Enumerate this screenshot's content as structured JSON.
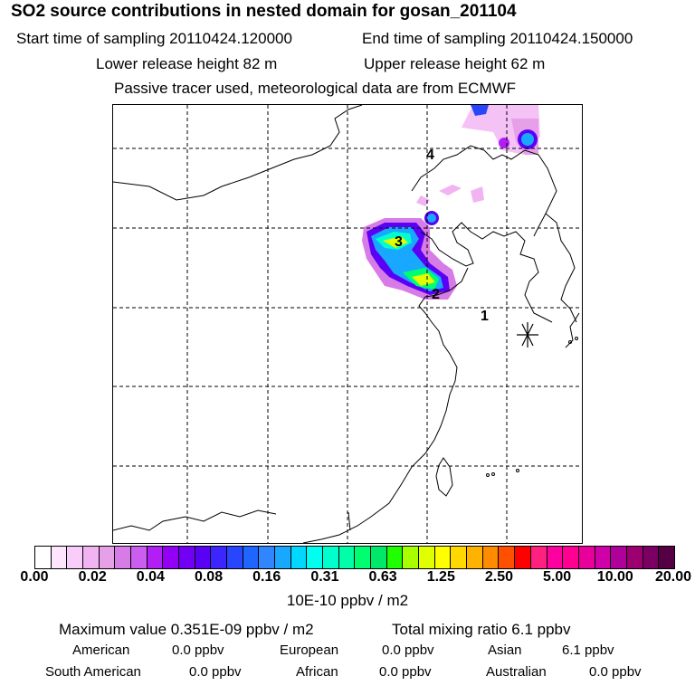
{
  "header": {
    "title": "SO2 source contributions in nested domain for gosan_201104",
    "start_time": "Start time of sampling 20110424.120000",
    "end_time": "End time of sampling 20110424.150000",
    "lower_release": "Lower release height   82 m",
    "upper_release": "Upper release height   62 m",
    "note": "Passive tracer used, meteorological data are from ECMWF"
  },
  "map": {
    "labels": [
      "1",
      "2",
      "3",
      "4"
    ],
    "colors": {
      "land_line": "#000000",
      "grid_line": "#000000"
    }
  },
  "colorbar": {
    "colors": [
      "#ffffff",
      "#fde6fd",
      "#f9cdf9",
      "#f2b3f2",
      "#e5a0e8",
      "#d77ce6",
      "#c95ef0",
      "#b11ff5",
      "#9400f5",
      "#7100f5",
      "#5a00f5",
      "#3c25ff",
      "#2946ff",
      "#1e66ff",
      "#2f86ff",
      "#19a8ff",
      "#00d8ff",
      "#00ffee",
      "#00ffcc",
      "#00ffa8",
      "#00ff70",
      "#00e86a",
      "#20ff00",
      "#a8ff00",
      "#e0ff00",
      "#ffff00",
      "#ffd800",
      "#ffb300",
      "#ff8c00",
      "#ff5000",
      "#ff0000",
      "#ff2080",
      "#ff00a0",
      "#ff0090",
      "#e8009a",
      "#d000a8",
      "#b0009a",
      "#9c0070",
      "#7c0064",
      "#550044"
    ],
    "tick_labels": [
      "0.00",
      "0.02",
      "0.04",
      "0.08",
      "0.16",
      "0.31",
      "0.63",
      "1.25",
      "2.50",
      "5.00",
      "10.00",
      "20.00"
    ],
    "units": "10E-10 ppbv / m2"
  },
  "footer": {
    "max_value": "Maximum value  0.351E-09 ppbv / m2",
    "total": "Total mixing ratio       6.1 ppbv",
    "regions": [
      {
        "name": "American",
        "value": "0.0 ppbv"
      },
      {
        "name": "European",
        "value": "0.0 ppbv"
      },
      {
        "name": "Asian",
        "value": "6.1 ppbv"
      },
      {
        "name": "South American",
        "value": "0.0 ppbv"
      },
      {
        "name": "African",
        "value": "0.0 ppbv"
      },
      {
        "name": "Australian",
        "value": "0.0 ppbv"
      }
    ]
  }
}
